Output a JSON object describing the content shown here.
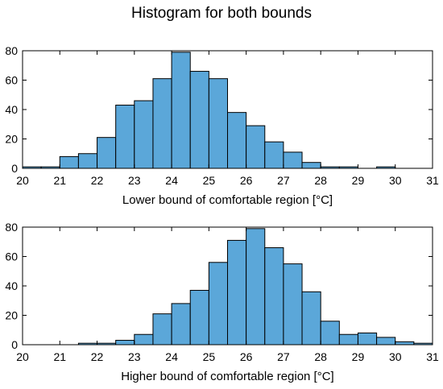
{
  "title": "Histogram for both bounds",
  "style": {
    "bar_fill": "#5ba7d9",
    "bar_stroke": "#000000"
  },
  "chart_data": [
    {
      "type": "bar",
      "xlabel": "Lower bound of comfortable region [°C]",
      "ylabel": "",
      "xlim": [
        20,
        31
      ],
      "ylim": [
        0,
        80
      ],
      "xticks": [
        20,
        21,
        22,
        23,
        24,
        25,
        26,
        27,
        28,
        29,
        30,
        31
      ],
      "yticks": [
        0,
        20,
        40,
        60,
        80
      ],
      "bin_width": 0.5,
      "bin_edges_start": [
        20,
        20.5,
        21,
        21.5,
        22,
        22.5,
        23,
        23.5,
        24,
        24.5,
        25,
        25.5,
        26,
        26.5,
        27,
        27.5,
        28,
        28.5,
        29,
        29.5,
        30,
        30.5
      ],
      "values": [
        1,
        1,
        8,
        10,
        21,
        43,
        46,
        61,
        79,
        66,
        61,
        38,
        29,
        18,
        11,
        4,
        1,
        1,
        0,
        1,
        0,
        0
      ]
    },
    {
      "type": "bar",
      "xlabel": "Higher bound of comfortable region [°C]",
      "ylabel": "",
      "xlim": [
        20,
        31
      ],
      "ylim": [
        0,
        80
      ],
      "xticks": [
        20,
        21,
        22,
        23,
        24,
        25,
        26,
        27,
        28,
        29,
        30,
        31
      ],
      "yticks": [
        0,
        20,
        40,
        60,
        80
      ],
      "bin_width": 0.5,
      "bin_edges_start": [
        20,
        20.5,
        21,
        21.5,
        22,
        22.5,
        23,
        23.5,
        24,
        24.5,
        25,
        25.5,
        26,
        26.5,
        27,
        27.5,
        28,
        28.5,
        29,
        29.5,
        30,
        30.5
      ],
      "values": [
        0,
        0,
        0,
        1,
        1,
        3,
        7,
        21,
        28,
        37,
        56,
        71,
        79,
        66,
        55,
        36,
        16,
        7,
        8,
        5,
        2,
        1
      ]
    }
  ]
}
